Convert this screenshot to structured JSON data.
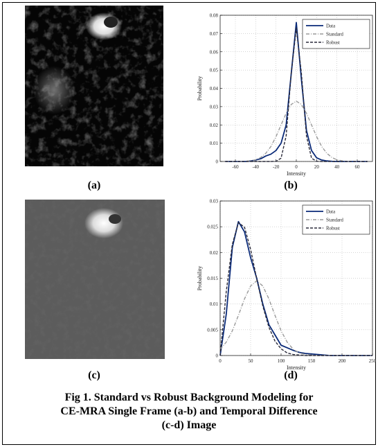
{
  "chart_data": [
    {
      "type": "line",
      "x": [
        -70,
        -65,
        -60,
        -55,
        -50,
        -45,
        -40,
        -35,
        -30,
        -25,
        -20,
        -15,
        -10,
        -5,
        0,
        5,
        10,
        15,
        20,
        25,
        30,
        35,
        40,
        45,
        50,
        55,
        60,
        65,
        70
      ],
      "series": [
        {
          "name": "Data",
          "color": "#0a2a78",
          "style": "solid",
          "values": [
            0,
            0,
            0,
            0,
            0,
            0.0003,
            0.0008,
            0.0015,
            0.003,
            0.004,
            0.006,
            0.01,
            0.02,
            0.048,
            0.076,
            0.045,
            0.017,
            0.006,
            0.002,
            0.0008,
            0.0003,
            0.0001,
            0,
            0,
            0,
            0,
            0,
            0,
            0
          ]
        },
        {
          "name": "Standard",
          "color": "#9a9a9a",
          "style": "dashdot",
          "values": [
            0,
            0,
            0,
            0,
            0.0001,
            0.0004,
            0.0009,
            0.0022,
            0.0045,
            0.0082,
            0.0136,
            0.02,
            0.0264,
            0.0312,
            0.033,
            0.0312,
            0.0264,
            0.02,
            0.0136,
            0.0082,
            0.0045,
            0.0022,
            0.0009,
            0.0004,
            0.0001,
            0,
            0,
            0,
            0
          ]
        },
        {
          "name": "Robust",
          "color": "#2a2a3a",
          "style": "dashed",
          "values": [
            0,
            0,
            0,
            0,
            0,
            0,
            0,
            0,
            0,
            0,
            0.0001,
            0.0018,
            0.014,
            0.0483,
            0.073,
            0.0483,
            0.014,
            0.0018,
            0.0001,
            0,
            0,
            0,
            0,
            0,
            0,
            0,
            0,
            0,
            0
          ]
        }
      ],
      "xlim": [
        -75,
        75
      ],
      "ylim": [
        0,
        0.08
      ],
      "xticks": [
        -60,
        -40,
        -20,
        0,
        20,
        40,
        60
      ],
      "yticks": [
        0,
        0.01,
        0.02,
        0.03,
        0.04,
        0.05,
        0.06,
        0.07,
        0.08
      ],
      "xlabel": "Intensity",
      "ylabel": "Probability",
      "grid": true,
      "legend": "upper right"
    },
    {
      "type": "line",
      "x": [
        0,
        10,
        20,
        30,
        40,
        50,
        60,
        70,
        80,
        90,
        100,
        110,
        120,
        130,
        140,
        150,
        160,
        170,
        180,
        190,
        200,
        210,
        220,
        230,
        240,
        250
      ],
      "series": [
        {
          "name": "Data",
          "color": "#0a2a78",
          "style": "solid",
          "values": [
            0,
            0.008,
            0.021,
            0.026,
            0.024,
            0.019,
            0.015,
            0.01,
            0.006,
            0.004,
            0.002,
            0.0015,
            0.001,
            0.0006,
            0.0004,
            0.0003,
            0.0002,
            0.0001,
            0,
            0,
            0,
            0,
            0,
            0,
            0,
            0
          ]
        },
        {
          "name": "Standard",
          "color": "#9a9a9a",
          "style": "dashdot",
          "values": [
            0.0012,
            0.0026,
            0.0048,
            0.0078,
            0.011,
            0.0135,
            0.0145,
            0.0135,
            0.011,
            0.0078,
            0.0048,
            0.0026,
            0.0012,
            0.0005,
            0.0002,
            0.0001,
            0,
            0,
            0,
            0,
            0,
            0,
            0,
            0,
            0,
            0
          ]
        },
        {
          "name": "Robust",
          "color": "#2a2a3a",
          "style": "dashed",
          "values": [
            0,
            0.0124,
            0.0216,
            0.0258,
            0.0249,
            0.0206,
            0.0149,
            0.0096,
            0.0055,
            0.0028,
            0.0013,
            0.0005,
            0.0002,
            0.0001,
            0,
            0,
            0,
            0,
            0,
            0,
            0,
            0,
            0,
            0,
            0,
            0
          ]
        }
      ],
      "xlim": [
        0,
        250
      ],
      "ylim": [
        0,
        0.03
      ],
      "xticks": [
        0,
        50,
        100,
        150,
        200,
        250
      ],
      "yticks": [
        0,
        0.005,
        0.01,
        0.015,
        0.02,
        0.025,
        0.03
      ],
      "xlabel": "Intensity",
      "ylabel": "Probability",
      "grid": true,
      "legend": "upper right"
    }
  ],
  "panels": [
    "(a)",
    "(b)",
    "(c)",
    "(d)"
  ],
  "caption": [
    "Fig 1.  Standard vs Robust Background Modeling for",
    "CE-MRA Single Frame (a-b) and Temporal Difference",
    "(c-d) Image"
  ]
}
